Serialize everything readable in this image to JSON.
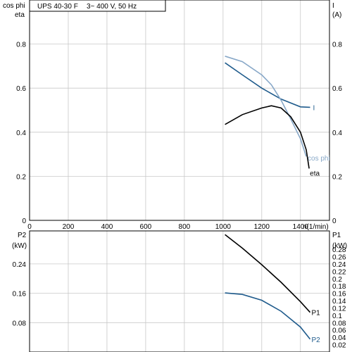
{
  "chart_data": [
    {
      "type": "line",
      "title": "UPS 40-30 F",
      "subtitle": "3~ 400 V, 50 Hz",
      "xlabel": "n(1/min)",
      "xlim": [
        0,
        1550
      ],
      "x_ticks": [
        0,
        200,
        400,
        600,
        800,
        1000,
        1200,
        1400
      ],
      "left_axis": {
        "labels": [
          "cos phi",
          "eta"
        ],
        "ylim": [
          0,
          1.0
        ],
        "ticks": [
          0,
          0.2,
          0.4,
          0.6,
          0.8
        ]
      },
      "right_axis": {
        "labels": [
          "I",
          "(A)"
        ],
        "ylim": [
          0,
          1.0
        ],
        "ticks": [
          0,
          0.2,
          0.4,
          0.6,
          0.8
        ]
      },
      "grid": true,
      "series": [
        {
          "name": "I",
          "color": "#1f5b8c",
          "points": [
            [
              1010,
              0.715
            ],
            [
              1100,
              0.66
            ],
            [
              1200,
              0.6
            ],
            [
              1300,
              0.55
            ],
            [
              1400,
              0.515
            ],
            [
              1450,
              0.513
            ]
          ]
        },
        {
          "name": "cos phi",
          "color": "#88a8c8",
          "points": [
            [
              1010,
              0.745
            ],
            [
              1100,
              0.72
            ],
            [
              1200,
              0.66
            ],
            [
              1250,
              0.615
            ],
            [
              1300,
              0.545
            ],
            [
              1350,
              0.46
            ],
            [
              1400,
              0.37
            ],
            [
              1430,
              0.29
            ]
          ]
        },
        {
          "name": "eta",
          "color": "#000000",
          "points": [
            [
              1010,
              0.435
            ],
            [
              1100,
              0.48
            ],
            [
              1200,
              0.51
            ],
            [
              1250,
              0.52
            ],
            [
              1300,
              0.51
            ],
            [
              1350,
              0.47
            ],
            [
              1400,
              0.4
            ],
            [
              1430,
              0.32
            ],
            [
              1445,
              0.235
            ]
          ]
        }
      ]
    },
    {
      "type": "line",
      "left_axis": {
        "labels": [
          "P2",
          "(kW)"
        ],
        "ylim": [
          0,
          0.33
        ],
        "ticks": [
          0.08,
          0.16,
          0.24
        ]
      },
      "right_axis": {
        "labels": [
          "P1",
          "(kW)"
        ],
        "ylim": [
          0,
          0.33
        ],
        "ticks": [
          0.02,
          0.04,
          0.06,
          0.08,
          0.1,
          0.12,
          0.14,
          0.16,
          0.18,
          0.2,
          0.22,
          0.24,
          0.26,
          0.28
        ]
      },
      "xlim": [
        0,
        1550
      ],
      "grid": true,
      "series": [
        {
          "name": "P1",
          "color": "#000000",
          "points": [
            [
              1010,
              0.32
            ],
            [
              1100,
              0.283
            ],
            [
              1200,
              0.238
            ],
            [
              1300,
              0.19
            ],
            [
              1400,
              0.137
            ],
            [
              1450,
              0.108
            ]
          ]
        },
        {
          "name": "P2",
          "color": "#1f5b8c",
          "points": [
            [
              1010,
              0.161
            ],
            [
              1100,
              0.157
            ],
            [
              1200,
              0.141
            ],
            [
              1300,
              0.111
            ],
            [
              1400,
              0.068
            ],
            [
              1450,
              0.035
            ]
          ]
        }
      ]
    }
  ]
}
